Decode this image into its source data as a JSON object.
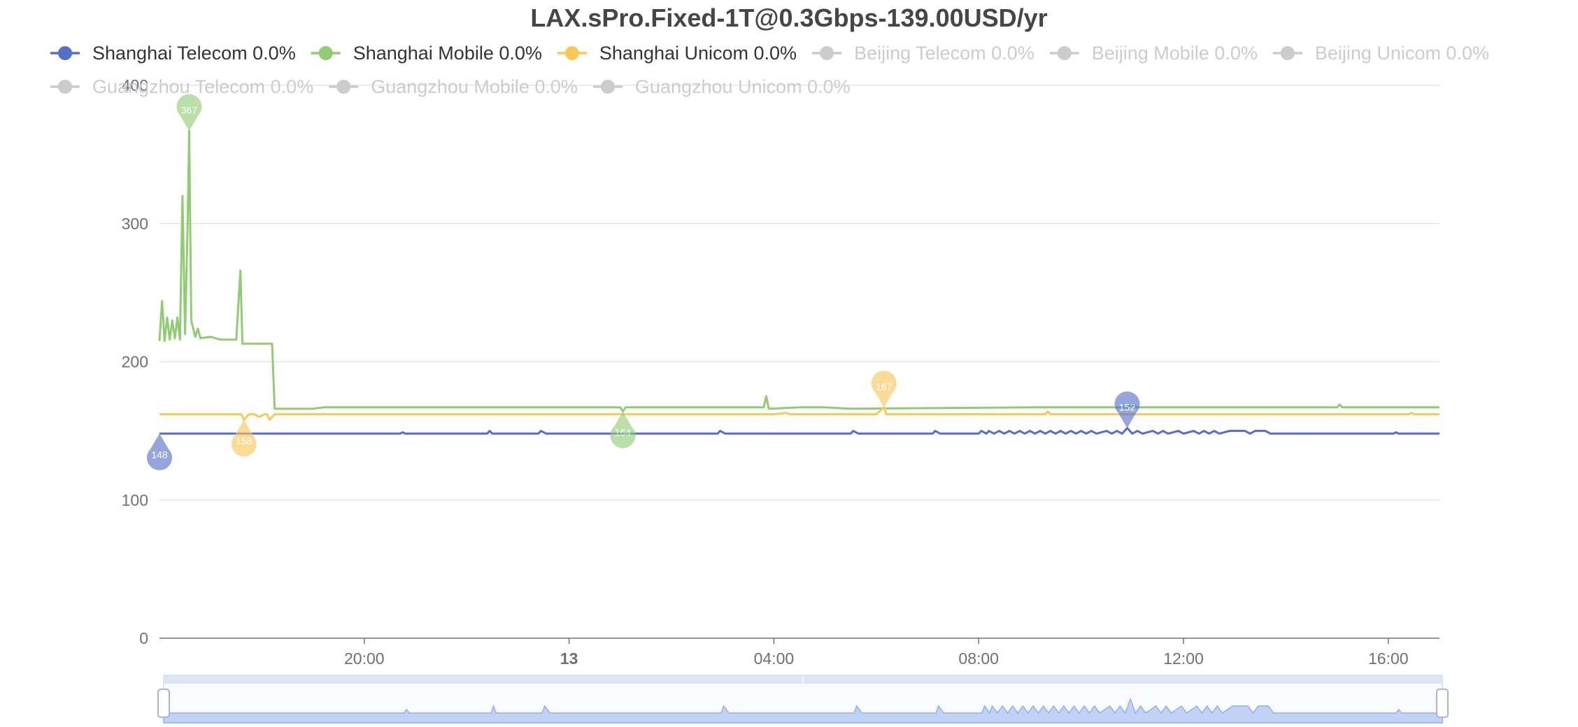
{
  "chart_data": {
    "type": "line",
    "title": "LAX.sPro.Fixed-1T@0.3Gbps-139.00USD/yr",
    "xlabel": "",
    "ylabel": "",
    "ylim": [
      0,
      400
    ],
    "y_ticks": [
      "0",
      "100",
      "200",
      "300",
      "400"
    ],
    "x_range_hours": [
      16.0,
      41.0
    ],
    "x_ticks": [
      {
        "label": "20:00",
        "hour": 20,
        "bold": false
      },
      {
        "label": "13",
        "hour": 24,
        "bold": true
      },
      {
        "label": "04:00",
        "hour": 28,
        "bold": false
      },
      {
        "label": "08:00",
        "hour": 32,
        "bold": false
      },
      {
        "label": "12:00",
        "hour": 36,
        "bold": false
      },
      {
        "label": "16:00",
        "hour": 40,
        "bold": false
      }
    ],
    "grid": true,
    "legend_position": "top",
    "legend": [
      {
        "label": "Shanghai Telecom 0.0%",
        "color": "#5470c6",
        "active": true
      },
      {
        "label": "Shanghai Mobile 0.0%",
        "color": "#91cc75",
        "active": true
      },
      {
        "label": "Shanghai Unicom 0.0%",
        "color": "#fac858",
        "active": true
      },
      {
        "label": "Beijing Telecom 0.0%",
        "color": "#cccccc",
        "active": false
      },
      {
        "label": "Beijing Mobile 0.0%",
        "color": "#cccccc",
        "active": false
      },
      {
        "label": "Beijing Unicom 0.0%",
        "color": "#cccccc",
        "active": false
      },
      {
        "label": "Guangzhou Telecom 0.0%",
        "color": "#cccccc",
        "active": false
      },
      {
        "label": "Guangzhou Mobile 0.0%",
        "color": "#cccccc",
        "active": false
      },
      {
        "label": "Guangzhou Unicom 0.0%",
        "color": "#cccccc",
        "active": false
      }
    ],
    "series": [
      {
        "name": "Shanghai Telecom 0.0%",
        "color": "#5470c6",
        "points": [
          [
            16.0,
            148
          ],
          [
            18.5,
            148
          ],
          [
            20.7,
            148
          ],
          [
            20.75,
            149
          ],
          [
            20.8,
            148
          ],
          [
            22.4,
            148
          ],
          [
            22.45,
            150
          ],
          [
            22.5,
            148
          ],
          [
            23.4,
            148
          ],
          [
            23.45,
            150
          ],
          [
            23.55,
            148
          ],
          [
            25.5,
            148
          ],
          [
            26.9,
            148
          ],
          [
            26.95,
            150
          ],
          [
            27.05,
            148
          ],
          [
            29.5,
            148
          ],
          [
            29.55,
            150
          ],
          [
            29.65,
            148
          ],
          [
            31.1,
            148
          ],
          [
            31.15,
            150
          ],
          [
            31.25,
            148
          ],
          [
            32.0,
            148
          ],
          [
            32.05,
            150
          ],
          [
            32.15,
            148
          ],
          [
            32.2,
            150
          ],
          [
            32.3,
            148
          ],
          [
            32.4,
            150
          ],
          [
            32.5,
            148
          ],
          [
            32.6,
            150
          ],
          [
            32.7,
            148
          ],
          [
            32.8,
            150
          ],
          [
            32.9,
            148
          ],
          [
            33.0,
            150
          ],
          [
            33.1,
            148
          ],
          [
            33.2,
            150
          ],
          [
            33.3,
            148
          ],
          [
            33.4,
            150
          ],
          [
            33.5,
            148
          ],
          [
            33.6,
            150
          ],
          [
            33.7,
            148
          ],
          [
            33.8,
            150
          ],
          [
            33.9,
            148
          ],
          [
            34.0,
            150
          ],
          [
            34.1,
            148
          ],
          [
            34.2,
            150
          ],
          [
            34.3,
            148
          ],
          [
            34.5,
            150
          ],
          [
            34.6,
            148
          ],
          [
            34.7,
            150
          ],
          [
            34.8,
            148
          ],
          [
            34.9,
            152
          ],
          [
            35.0,
            148
          ],
          [
            35.1,
            150
          ],
          [
            35.2,
            148
          ],
          [
            35.4,
            150
          ],
          [
            35.5,
            148
          ],
          [
            35.6,
            150
          ],
          [
            35.7,
            148
          ],
          [
            35.9,
            150
          ],
          [
            36.0,
            148
          ],
          [
            36.2,
            150
          ],
          [
            36.3,
            148
          ],
          [
            36.4,
            150
          ],
          [
            36.5,
            148
          ],
          [
            36.6,
            150
          ],
          [
            36.7,
            148
          ],
          [
            36.9,
            150
          ],
          [
            37.2,
            150
          ],
          [
            37.3,
            148
          ],
          [
            37.4,
            150
          ],
          [
            37.6,
            150
          ],
          [
            37.7,
            148
          ],
          [
            38.0,
            148
          ],
          [
            40.1,
            148
          ],
          [
            40.15,
            149
          ],
          [
            40.2,
            148
          ],
          [
            41.0,
            148
          ]
        ]
      },
      {
        "name": "Shanghai Mobile 0.0%",
        "color": "#91cc75",
        "points": [
          [
            16.0,
            215
          ],
          [
            16.05,
            244
          ],
          [
            16.1,
            215
          ],
          [
            16.15,
            232
          ],
          [
            16.2,
            216
          ],
          [
            16.25,
            230
          ],
          [
            16.3,
            217
          ],
          [
            16.35,
            232
          ],
          [
            16.4,
            216
          ],
          [
            16.45,
            320
          ],
          [
            16.5,
            220
          ],
          [
            16.55,
            300
          ],
          [
            16.58,
            367
          ],
          [
            16.62,
            230
          ],
          [
            16.7,
            218
          ],
          [
            16.75,
            224
          ],
          [
            16.8,
            217
          ],
          [
            17.0,
            218
          ],
          [
            17.2,
            216
          ],
          [
            17.5,
            216
          ],
          [
            17.58,
            266
          ],
          [
            17.62,
            213
          ],
          [
            18.2,
            213
          ],
          [
            18.25,
            166
          ],
          [
            19.0,
            166
          ],
          [
            19.2,
            167
          ],
          [
            22.5,
            167
          ],
          [
            25.0,
            167
          ],
          [
            25.05,
            164
          ],
          [
            25.1,
            167
          ],
          [
            27.0,
            167
          ],
          [
            27.8,
            167
          ],
          [
            27.85,
            175
          ],
          [
            27.9,
            166
          ],
          [
            28.5,
            167
          ],
          [
            29.0,
            167
          ],
          [
            29.5,
            166
          ],
          [
            33.0,
            167
          ],
          [
            34.9,
            167
          ],
          [
            35.0,
            169
          ],
          [
            35.1,
            167
          ],
          [
            38.0,
            167
          ],
          [
            39.0,
            167
          ],
          [
            39.05,
            169
          ],
          [
            39.1,
            167
          ],
          [
            40.0,
            167
          ],
          [
            41.0,
            167
          ]
        ]
      },
      {
        "name": "Shanghai Unicom 0.0%",
        "color": "#fac858",
        "points": [
          [
            16.0,
            162
          ],
          [
            17.6,
            162
          ],
          [
            17.65,
            158
          ],
          [
            17.75,
            162
          ],
          [
            17.85,
            162
          ],
          [
            17.95,
            160
          ],
          [
            18.05,
            162
          ],
          [
            18.1,
            162
          ],
          [
            18.15,
            158
          ],
          [
            18.25,
            162
          ],
          [
            22.0,
            162
          ],
          [
            24.0,
            162
          ],
          [
            28.0,
            162
          ],
          [
            28.25,
            163
          ],
          [
            28.3,
            162
          ],
          [
            29.2,
            162
          ],
          [
            30.0,
            162
          ],
          [
            30.15,
            167
          ],
          [
            30.2,
            162
          ],
          [
            31.0,
            162
          ],
          [
            33.3,
            162
          ],
          [
            33.35,
            164
          ],
          [
            33.4,
            162
          ],
          [
            36.0,
            162
          ],
          [
            38.0,
            162
          ],
          [
            40.4,
            162
          ],
          [
            40.45,
            163
          ],
          [
            40.5,
            162
          ],
          [
            41.0,
            162
          ]
        ]
      }
    ],
    "markers": [
      {
        "series": "Shanghai Telecom 0.0%",
        "label": "148",
        "x": 16.0,
        "y": 148,
        "kind": "min"
      },
      {
        "series": "Shanghai Telecom 0.0%",
        "label": "152",
        "x": 34.9,
        "y": 152,
        "kind": "max"
      },
      {
        "series": "Shanghai Mobile 0.0%",
        "label": "367",
        "x": 16.58,
        "y": 367,
        "kind": "max"
      },
      {
        "series": "Shanghai Mobile 0.0%",
        "label": "164",
        "x": 25.05,
        "y": 164,
        "kind": "min"
      },
      {
        "series": "Shanghai Unicom 0.0%",
        "label": "158",
        "x": 17.65,
        "y": 158,
        "kind": "min"
      },
      {
        "series": "Shanghai Unicom 0.0%",
        "label": "167",
        "x": 30.15,
        "y": 167,
        "kind": "max"
      }
    ],
    "data_zoom": {
      "start_percent": 0,
      "end_percent": 100
    },
    "data_zoom_handle_glyph": "⦀"
  }
}
